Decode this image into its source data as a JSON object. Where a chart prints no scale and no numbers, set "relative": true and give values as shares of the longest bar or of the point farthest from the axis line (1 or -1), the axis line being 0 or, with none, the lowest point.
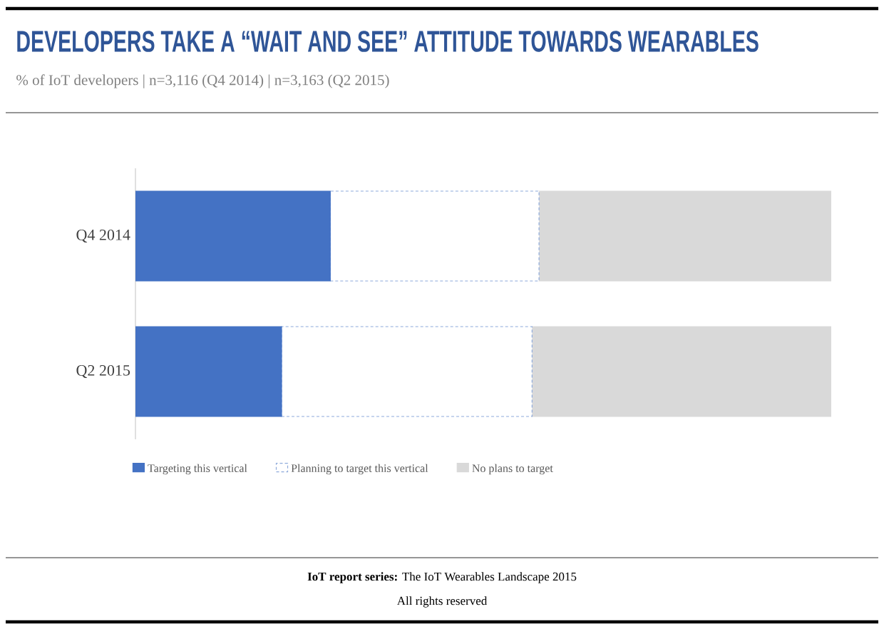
{
  "chart_data": {
    "type": "bar",
    "title": "DEVELOPERS TAKE A “WAIT AND SEE” ATTITUDE TOWARDS WEARABLES",
    "subtitle": "% of IoT developers  | n=3,116 (Q4 2014) | n=3,163 (Q2 2015)",
    "categories": [
      "Q4 2014",
      "Q2 2015"
    ],
    "orientation": "horizontal",
    "stacked": true,
    "relative": true,
    "legend": "bottom",
    "series": [
      {
        "name": "Targeting this vertical",
        "color": "#4472c4",
        "values": [
          0.28,
          0.21
        ]
      },
      {
        "name": "Planning to target this vertical",
        "color": "#ffffff",
        "line_style": "dashed",
        "values": [
          0.3,
          0.36
        ]
      },
      {
        "name": "No plans to target",
        "color": "#d9d9d9",
        "values": [
          0.42,
          0.43
        ]
      }
    ],
    "annotations": [
      "**IoT report series:** The IoT Wearables Landscape 2015",
      "All rights reserved"
    ]
  }
}
